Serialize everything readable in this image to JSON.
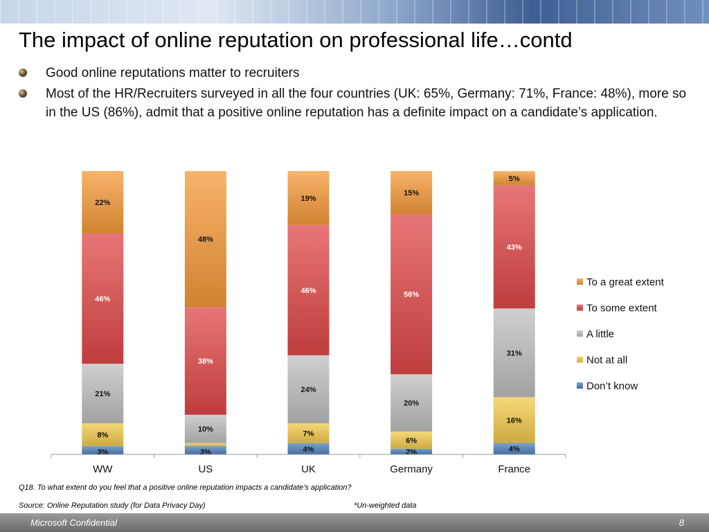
{
  "title": "The impact of online reputation on professional life…contd",
  "bullets": [
    "Good online reputations matter to recruiters",
    "Most of the HR/Recruiters surveyed in all the four countries (UK: 65%, Germany: 71%, France: 48%), more so in the US (86%), admit that a positive online reputation has a definite impact on a candidate’s application."
  ],
  "question": "Q18. To what extent do you feel that a positive online reputation impacts a candidate’s application?",
  "source": "Source: Online Reputation study (for Data Privacy Day)",
  "note": "*Un-weighted data",
  "footer": {
    "left": "Microsoft Confidential",
    "page": "8"
  },
  "chart_data": {
    "type": "bar",
    "stacked": true,
    "categories": [
      "WW",
      "US",
      "UK",
      "Germany",
      "France"
    ],
    "ylim": [
      0,
      100
    ],
    "legend_position": "right",
    "series": [
      {
        "name": "Don’t know",
        "color": "#4f81bd",
        "values": [
          3,
          3,
          4,
          2,
          4
        ],
        "labels": [
          "3%",
          "3%",
          "4%",
          "2%",
          "4%"
        ]
      },
      {
        "name": "Not at all",
        "color": "#f2c94c",
        "values": [
          8,
          1,
          7,
          6,
          16
        ],
        "labels": [
          "8%",
          "1%",
          "7%",
          "6%",
          "16%"
        ]
      },
      {
        "name": "A little",
        "color": "#bfbfbf",
        "values": [
          21,
          10,
          24,
          20,
          31
        ],
        "labels": [
          "21%",
          "10%",
          "24%",
          "20%",
          "31%"
        ]
      },
      {
        "name": "To some extent",
        "color": "#e04848",
        "values": [
          46,
          38,
          46,
          56,
          43
        ],
        "labels": [
          "46%",
          "38%",
          "46%",
          "56%",
          "43%"
        ]
      },
      {
        "name": "To a great extent",
        "color": "#f59a3a",
        "values": [
          22,
          48,
          19,
          15,
          5
        ],
        "labels": [
          "22%",
          "48%",
          "19%",
          "15%",
          "5%"
        ]
      }
    ]
  }
}
